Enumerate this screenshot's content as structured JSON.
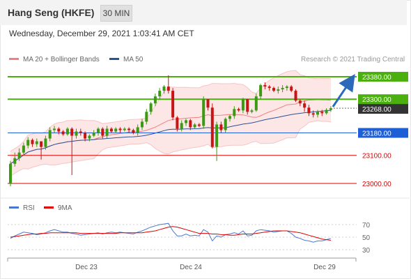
{
  "header": {
    "title": "Hang Seng (HKFE)",
    "timeframe": "30 MIN",
    "datetime": "Wednesday, December 29, 2021 1:03:41 AM CET"
  },
  "legend": {
    "ma20_label": "MA 20 + Bollinger Bands",
    "ma20_color": "#f08080",
    "ma50_label": "MA 50",
    "ma50_color": "#2a5298",
    "credit": "Research © 2021 Trading Central"
  },
  "rsi_legend": {
    "rsi_label": "RSI",
    "rsi_color": "#4a78d0",
    "ma9_label": "9MA",
    "ma9_color": "#e00000"
  },
  "chart_data": {
    "type": "candlestick",
    "symbol": "Hang Seng (HKFE)",
    "timeframe": "30 MIN",
    "x_labels": [
      "Dec 23",
      "Dec 24",
      "Dec 29"
    ],
    "y_range": [
      22970,
      23390
    ],
    "current_price": "23268.00",
    "levels": [
      {
        "label": "23380.00",
        "value": 23380,
        "kind": "resistance",
        "color": "#4caf10"
      },
      {
        "label": "23300.00",
        "value": 23300,
        "kind": "resistance",
        "color": "#4caf10"
      },
      {
        "label": "23268.00",
        "value": 23268,
        "kind": "last",
        "color": "#333333"
      },
      {
        "label": "23180.00",
        "value": 23180,
        "kind": "pivot",
        "color": "#1f5fd6"
      },
      {
        "label": "23100.00",
        "value": 23100,
        "kind": "support",
        "color": "#e00000"
      },
      {
        "label": "23000.00",
        "value": 23000,
        "kind": "support",
        "color": "#e00000"
      }
    ],
    "arrow": {
      "from": 23268,
      "to": 23380,
      "color": "#2a6ab8"
    },
    "candles": [
      [
        23000,
        23070,
        22990,
        23080
      ],
      [
        23070,
        23090,
        23060,
        23110
      ],
      [
        23090,
        23110,
        23080,
        23125
      ],
      [
        23110,
        23135,
        23100,
        23145
      ],
      [
        23135,
        23155,
        23125,
        23165
      ],
      [
        23155,
        23140,
        23130,
        23160
      ],
      [
        23140,
        23150,
        23130,
        23160
      ],
      [
        23150,
        23130,
        23085,
        23150
      ],
      [
        23130,
        23160,
        23120,
        23170
      ],
      [
        23160,
        23190,
        23150,
        23200
      ],
      [
        23190,
        23195,
        23180,
        23205
      ],
      [
        23195,
        23185,
        23175,
        23200
      ],
      [
        23185,
        23175,
        23170,
        23190
      ],
      [
        23175,
        23195,
        23170,
        23200
      ],
      [
        23195,
        23170,
        23030,
        23200
      ],
      [
        23170,
        23185,
        23160,
        23195
      ],
      [
        23185,
        23180,
        23170,
        23195
      ],
      [
        23180,
        23160,
        23150,
        23185
      ],
      [
        23160,
        23170,
        23150,
        23175
      ],
      [
        23170,
        23180,
        23165,
        23190
      ],
      [
        23180,
        23195,
        23170,
        23200
      ],
      [
        23195,
        23170,
        23160,
        23200
      ],
      [
        23170,
        23195,
        23160,
        23205
      ],
      [
        23195,
        23185,
        23180,
        23200
      ],
      [
        23185,
        23195,
        23180,
        23200
      ],
      [
        23195,
        23190,
        23180,
        23200
      ],
      [
        23190,
        23195,
        23185,
        23200
      ],
      [
        23195,
        23190,
        23180,
        23200
      ],
      [
        23190,
        23180,
        23175,
        23195
      ],
      [
        23180,
        23200,
        23170,
        23210
      ],
      [
        23200,
        23220,
        23190,
        23230
      ],
      [
        23220,
        23255,
        23210,
        23265
      ],
      [
        23255,
        23285,
        23245,
        23290
      ],
      [
        23285,
        23310,
        23275,
        23320
      ],
      [
        23310,
        23330,
        23300,
        23340
      ],
      [
        23330,
        23345,
        23320,
        23350
      ],
      [
        23345,
        23330,
        23320,
        23385
      ],
      [
        23330,
        23235,
        23225,
        23340
      ],
      [
        23235,
        23195,
        23185,
        23240
      ],
      [
        23195,
        23215,
        23185,
        23225
      ],
      [
        23215,
        23225,
        23205,
        23230
      ],
      [
        23225,
        23200,
        23190,
        23230
      ],
      [
        23200,
        23210,
        23195,
        23215
      ],
      [
        23210,
        23205,
        23200,
        23215
      ],
      [
        23205,
        23300,
        23195,
        23310
      ],
      [
        23300,
        23270,
        23260,
        23300
      ],
      [
        23270,
        23130,
        23125,
        23285
      ],
      [
        23130,
        23210,
        23080,
        23220
      ],
      [
        23210,
        23190,
        23180,
        23220
      ],
      [
        23190,
        23230,
        23180,
        23235
      ],
      [
        23230,
        23240,
        23220,
        23245
      ],
      [
        23240,
        23265,
        23230,
        23275
      ],
      [
        23265,
        23260,
        23255,
        23270
      ],
      [
        23260,
        23300,
        23250,
        23305
      ],
      [
        23300,
        23255,
        23245,
        23300
      ],
      [
        23255,
        23260,
        23250,
        23265
      ],
      [
        23260,
        23310,
        23255,
        23320
      ],
      [
        23310,
        23350,
        23300,
        23355
      ],
      [
        23350,
        23345,
        23335,
        23360
      ],
      [
        23345,
        23340,
        23330,
        23350
      ],
      [
        23340,
        23330,
        23325,
        23345
      ],
      [
        23330,
        23335,
        23320,
        23345
      ],
      [
        23335,
        23340,
        23325,
        23350
      ],
      [
        23340,
        23345,
        23330,
        23350
      ],
      [
        23345,
        23330,
        23325,
        23350
      ],
      [
        23330,
        23295,
        23290,
        23335
      ],
      [
        23295,
        23285,
        23275,
        23300
      ],
      [
        23285,
        23270,
        23255,
        23295
      ],
      [
        23270,
        23250,
        23240,
        23280
      ],
      [
        23250,
        23245,
        23235,
        23260
      ],
      [
        23245,
        23255,
        23235,
        23262
      ],
      [
        23255,
        23250,
        23240,
        23262
      ],
      [
        23250,
        23262,
        23245,
        23268
      ],
      [
        23262,
        23268,
        23255,
        23275
      ]
    ],
    "rsi": {
      "levels": [
        "70",
        "50",
        "30"
      ],
      "rsi_values": [
        48,
        52,
        55,
        58,
        57,
        56,
        54,
        55,
        57,
        60,
        62,
        60,
        58,
        58,
        56,
        55,
        53,
        54,
        55,
        56,
        57,
        55,
        57,
        58,
        57,
        58,
        57,
        56,
        55,
        58,
        60,
        63,
        66,
        68,
        70,
        71,
        72,
        60,
        52,
        52,
        55,
        52,
        53,
        52,
        62,
        58,
        44,
        52,
        50,
        54,
        55,
        57,
        55,
        60,
        52,
        53,
        60,
        62,
        61,
        60,
        58,
        59,
        60,
        60,
        56,
        50,
        48,
        45,
        44,
        42,
        44,
        44,
        46,
        48
      ],
      "ma9_values": [
        50,
        51,
        52,
        53,
        54,
        55,
        55,
        56,
        56,
        57,
        57,
        57,
        57,
        57,
        57,
        57,
        56,
        56,
        56,
        56,
        56,
        56,
        56,
        56,
        56,
        57,
        57,
        57,
        57,
        57,
        57,
        58,
        59,
        60,
        62,
        64,
        66,
        67,
        66,
        64,
        62,
        60,
        58,
        56,
        56,
        56,
        55,
        55,
        54,
        54,
        53,
        53,
        54,
        55,
        55,
        55,
        56,
        57,
        58,
        59,
        60,
        60,
        60,
        60,
        59,
        58,
        57,
        55,
        53,
        51,
        49,
        47,
        46,
        45
      ]
    }
  }
}
